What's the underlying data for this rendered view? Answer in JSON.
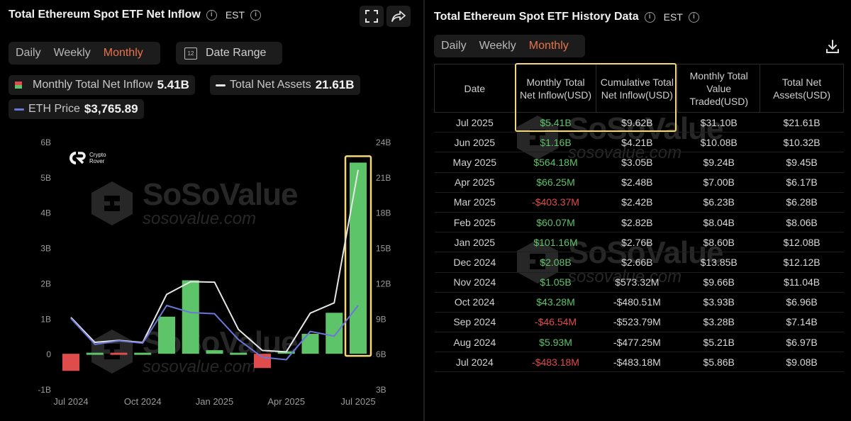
{
  "left": {
    "title": "Total Ethereum Spot ETF Net Inflow",
    "timezone": "EST",
    "tabs": [
      {
        "label": "Daily",
        "active": false
      },
      {
        "label": "Weekly",
        "active": false
      },
      {
        "label": "Monthly",
        "active": true
      }
    ],
    "date_range_label": "Date Range",
    "date_range_icon_text": "12",
    "legend": [
      {
        "label": "Monthly Total Net Inflow",
        "value": "5.41B"
      },
      {
        "label": "Total Net Assets",
        "value": "21.61B"
      },
      {
        "label": "ETH Price",
        "value": "$3,765.89"
      }
    ],
    "badge": {
      "line1": "Crypto",
      "line2": "Rover"
    },
    "watermark": {
      "main": "SoSoValue",
      "sub": "sosovalue.com"
    }
  },
  "chart_data": {
    "type": "bar",
    "categories": [
      "Jul 2024",
      "Aug 2024",
      "Sep 2024",
      "Oct 2024",
      "Nov 2024",
      "Dec 2024",
      "Jan 2025",
      "Feb 2025",
      "Mar 2025",
      "Apr 2025",
      "May 2025",
      "Jun 2025",
      "Jul 2025"
    ],
    "x_tick_labels": [
      "Jul 2024",
      "Oct 2024",
      "Jan 2025",
      "Apr 2025",
      "Jul 2025"
    ],
    "y_left_ticks": [
      "-1B",
      "0",
      "1B",
      "2B",
      "3B",
      "4B",
      "5B",
      "6B"
    ],
    "y_right_ticks": [
      "3B",
      "6B",
      "9B",
      "12B",
      "15B",
      "18B",
      "21B",
      "24B"
    ],
    "ylim_left": [
      -1,
      6
    ],
    "ylim_right": [
      3,
      24
    ],
    "series": [
      {
        "name": "Monthly Total Net Inflow",
        "type": "bar",
        "axis": "left",
        "values": [
          -0.48318,
          0.00593,
          -0.04654,
          0.04328,
          1.05,
          2.08,
          0.10116,
          0.06007,
          -0.40337,
          0.06625,
          0.56418,
          1.16,
          5.41
        ]
      },
      {
        "name": "Total Net Assets",
        "type": "line",
        "axis": "right",
        "color": "#e6e6e6",
        "values": [
          9.08,
          6.97,
          7.14,
          6.96,
          11.04,
          12.12,
          12.08,
          8.06,
          6.28,
          6.17,
          9.45,
          10.32,
          21.61
        ]
      },
      {
        "name": "ETH Price",
        "type": "line",
        "axis": "right",
        "color": "#6a76d8",
        "values": [
          9.0,
          6.8,
          7.1,
          6.9,
          10.1,
          9.5,
          9.4,
          7.2,
          5.7,
          5.5,
          7.9,
          7.5,
          10.1
        ]
      }
    ],
    "colors": {
      "positive": "#5ec46a",
      "negative": "#e04b4b",
      "highlight": "#f5d67a"
    }
  },
  "right": {
    "title": "Total Ethereum Spot ETF History Data",
    "timezone": "EST",
    "tabs": [
      {
        "label": "Daily",
        "active": false
      },
      {
        "label": "Weekly",
        "active": false
      },
      {
        "label": "Monthly",
        "active": true
      }
    ],
    "watermark": {
      "main": "SoSoValue",
      "sub": "sosovalue.com"
    },
    "columns": [
      "Date",
      "Monthly Total Net Inflow(USD)",
      "Cumulative Total Net Inflow(USD)",
      "Monthly Total Value Traded(USD)",
      "Total Net Assets(USD)"
    ],
    "rows": [
      {
        "date": "Jul 2025",
        "inflow": "$5.41B",
        "sign": "pos",
        "cum": "$9.62B",
        "traded": "$31.10B",
        "assets": "$21.61B"
      },
      {
        "date": "Jun 2025",
        "inflow": "$1.16B",
        "sign": "pos",
        "cum": "$4.21B",
        "traded": "$10.08B",
        "assets": "$10.32B"
      },
      {
        "date": "May 2025",
        "inflow": "$564.18M",
        "sign": "pos",
        "cum": "$3.05B",
        "traded": "$9.24B",
        "assets": "$9.45B"
      },
      {
        "date": "Apr 2025",
        "inflow": "$66.25M",
        "sign": "pos",
        "cum": "$2.48B",
        "traded": "$7.00B",
        "assets": "$6.17B"
      },
      {
        "date": "Mar 2025",
        "inflow": "-$403.37M",
        "sign": "neg",
        "cum": "$2.42B",
        "traded": "$6.23B",
        "assets": "$6.28B"
      },
      {
        "date": "Feb 2025",
        "inflow": "$60.07M",
        "sign": "pos",
        "cum": "$2.82B",
        "traded": "$8.04B",
        "assets": "$8.06B"
      },
      {
        "date": "Jan 2025",
        "inflow": "$101.16M",
        "sign": "pos",
        "cum": "$2.76B",
        "traded": "$8.60B",
        "assets": "$12.08B"
      },
      {
        "date": "Dec 2024",
        "inflow": "$2.08B",
        "sign": "pos",
        "cum": "$2.66B",
        "traded": "$13.85B",
        "assets": "$12.12B"
      },
      {
        "date": "Nov 2024",
        "inflow": "$1.05B",
        "sign": "pos",
        "cum": "$573.32M",
        "traded": "$9.66B",
        "assets": "$11.04B"
      },
      {
        "date": "Oct 2024",
        "inflow": "$43.28M",
        "sign": "pos",
        "cum": "-$480.51M",
        "traded": "$3.93B",
        "assets": "$6.96B"
      },
      {
        "date": "Sep 2024",
        "inflow": "-$46.54M",
        "sign": "neg",
        "cum": "-$523.79M",
        "traded": "$3.28B",
        "assets": "$7.14B"
      },
      {
        "date": "Aug 2024",
        "inflow": "$5.93M",
        "sign": "pos",
        "cum": "-$477.25M",
        "traded": "$5.21B",
        "assets": "$6.97B"
      },
      {
        "date": "Jul 2024",
        "inflow": "-$483.18M",
        "sign": "neg",
        "cum": "-$483.18M",
        "traded": "$5.86B",
        "assets": "$9.08B"
      }
    ]
  }
}
